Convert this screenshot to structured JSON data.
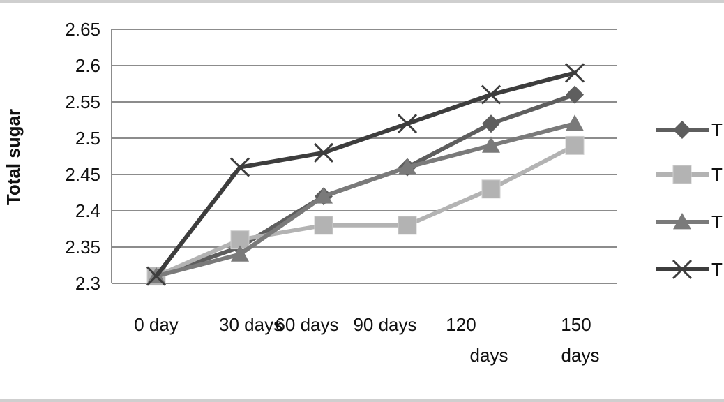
{
  "chart_data": {
    "type": "line",
    "title": "",
    "xlabel": "",
    "ylabel": "Total sugar",
    "categories": [
      "0 day",
      "30 days",
      "60 days",
      "90 days",
      "120 days",
      "150 days"
    ],
    "ylim": [
      2.3,
      2.65
    ],
    "yticks": [
      2.3,
      2.35,
      2.4,
      2.45,
      2.5,
      2.55,
      2.6,
      2.65
    ],
    "grid": true,
    "legend_position": "right",
    "series": [
      {
        "name": "T",
        "marker": "diamond",
        "color": "#5e5e5e",
        "values": [
          2.31,
          2.35,
          2.42,
          2.46,
          2.52,
          2.56
        ]
      },
      {
        "name": "T",
        "marker": "square",
        "color": "#b3b3b3",
        "values": [
          2.31,
          2.36,
          2.38,
          2.38,
          2.43,
          2.49
        ]
      },
      {
        "name": "T",
        "marker": "triangle",
        "color": "#7a7a7a",
        "values": [
          2.31,
          2.34,
          2.42,
          2.46,
          2.49,
          2.52
        ]
      },
      {
        "name": "T",
        "marker": "x",
        "color": "#3d3d3d",
        "values": [
          2.31,
          2.46,
          2.48,
          2.52,
          2.56,
          2.59
        ]
      }
    ]
  }
}
